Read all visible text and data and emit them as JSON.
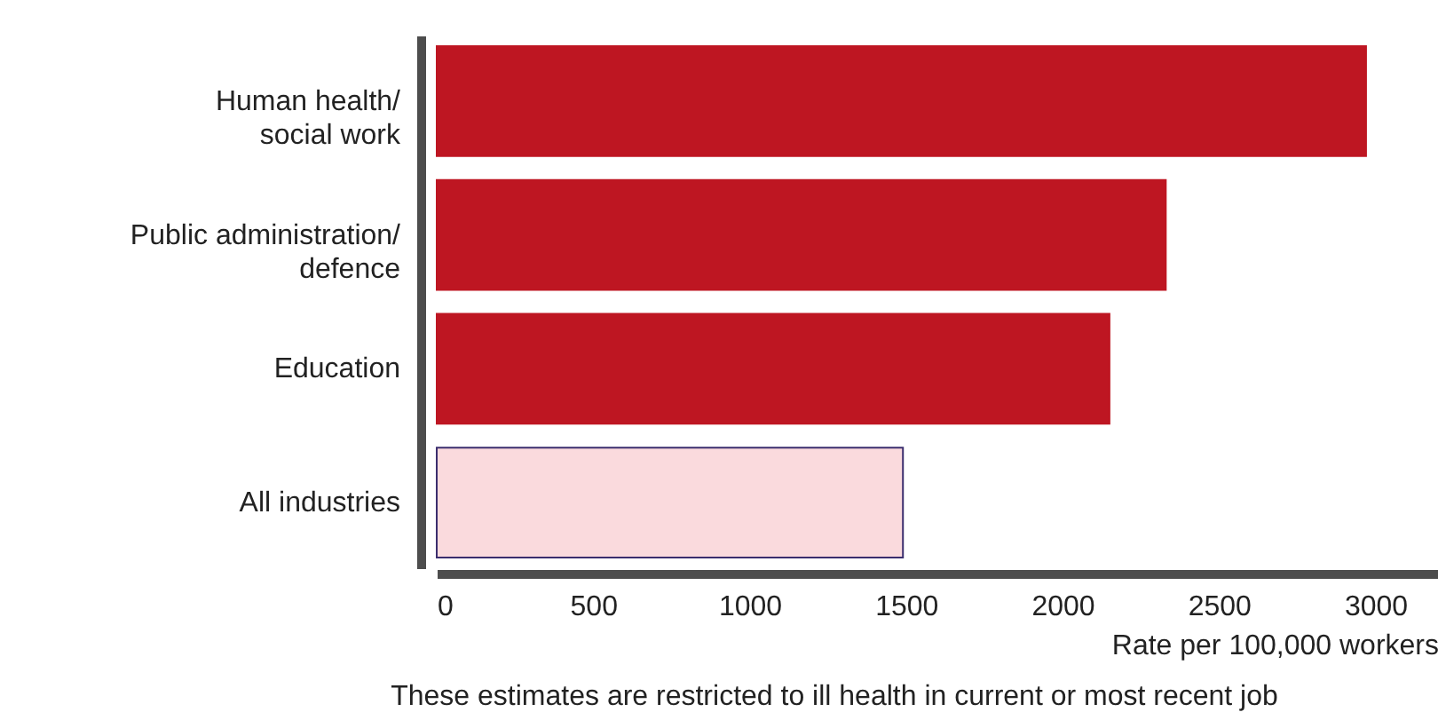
{
  "chart_data": {
    "type": "bar",
    "orientation": "horizontal",
    "xlabel": "Rate per 100,000 workers",
    "categories": [
      "Human health/ social work",
      "Public administration/ defence",
      "Education",
      "All industries"
    ],
    "values": [
      2970,
      2330,
      2150,
      1490
    ],
    "colors": [
      "#be1622",
      "#be1622",
      "#be1622",
      "#fadadd"
    ],
    "xlim": [
      0,
      3200
    ],
    "xticks": [
      0,
      500,
      1000,
      1500,
      2000,
      2500,
      3000
    ],
    "grid": false,
    "annotations": [
      "These estimates are restricted to ill health in current or most recent job"
    ]
  }
}
